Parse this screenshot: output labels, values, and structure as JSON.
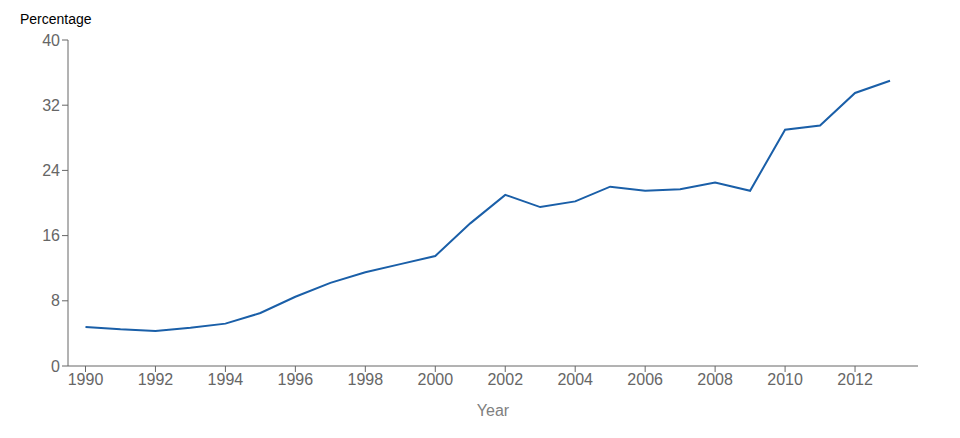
{
  "chart_data": {
    "type": "line",
    "ylabel": "Percentage",
    "xlabel": "Year",
    "x": [
      1990,
      1991,
      1992,
      1993,
      1994,
      1995,
      1996,
      1997,
      1998,
      1999,
      2000,
      2001,
      2002,
      2003,
      2004,
      2005,
      2006,
      2007,
      2008,
      2009,
      2010,
      2011,
      2012,
      2013
    ],
    "values": [
      4.8,
      4.5,
      4.3,
      4.7,
      5.2,
      6.5,
      8.5,
      10.2,
      11.5,
      12.5,
      13.5,
      17.5,
      21.0,
      19.5,
      20.2,
      22.0,
      21.5,
      21.7,
      22.5,
      21.5,
      29.0,
      29.5,
      33.5,
      35.0
    ],
    "color": "#1a5fa8",
    "xlim": [
      1989.5,
      2013.8
    ],
    "xticks": [
      1990,
      1992,
      1994,
      1996,
      1998,
      2000,
      2002,
      2004,
      2006,
      2008,
      2010,
      2012
    ],
    "ylim": [
      0,
      40
    ],
    "yticks": [
      0,
      8,
      16,
      24,
      32,
      40
    ],
    "grid": false
  }
}
